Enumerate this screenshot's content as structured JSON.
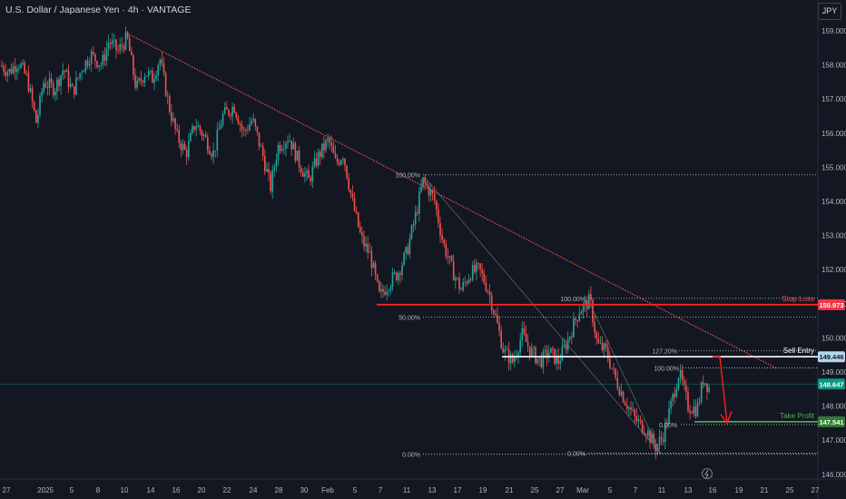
{
  "header": {
    "title": "U.S. Dollar / Japanese Yen · 4h · VANTAGE",
    "currency": "JPY"
  },
  "colors": {
    "background": "#131722",
    "up": "#26a69a",
    "down": "#ef5350",
    "trendline": "#ef5350",
    "stop": "#ff1f1f",
    "entry": "#ffffff",
    "take": "#4caf50",
    "last": "#089981"
  },
  "chart_data": {
    "type": "candlestick",
    "title": "U.S. Dollar / Japanese Yen · 4h · VANTAGE",
    "ylim": [
      145.9,
      159.45
    ],
    "y_ticks": [
      "146.000",
      "147.000",
      "148.000",
      "149.000",
      "150.000",
      "151.000",
      "152.000",
      "153.000",
      "154.000",
      "155.000",
      "156.000",
      "157.000",
      "158.000",
      "159.000"
    ],
    "x_ticks": [
      "27",
      "2025",
      "5",
      "8",
      "10",
      "14",
      "16",
      "20",
      "22",
      "24",
      "28",
      "30",
      "Feb",
      "5",
      "7",
      "11",
      "13",
      "17",
      "19",
      "21",
      "25",
      "27",
      "Mar",
      "5",
      "7",
      "11",
      "13",
      "16",
      "19",
      "21",
      "25",
      "27"
    ],
    "grid": false,
    "price_path": [
      [
        0,
        158.0
      ],
      [
        10,
        157.8
      ],
      [
        20,
        158.1
      ],
      [
        30,
        157.6
      ],
      [
        40,
        156.3
      ],
      [
        48,
        157.5
      ],
      [
        60,
        157.3
      ],
      [
        70,
        157.9
      ],
      [
        80,
        157.2
      ],
      [
        90,
        157.9
      ],
      [
        100,
        158.3
      ],
      [
        112,
        158.0
      ],
      [
        120,
        158.7
      ],
      [
        130,
        158.4
      ],
      [
        140,
        158.8
      ],
      [
        150,
        157.3
      ],
      [
        160,
        157.8
      ],
      [
        168,
        157.6
      ],
      [
        176,
        158.2
      ],
      [
        186,
        156.8
      ],
      [
        195,
        155.9
      ],
      [
        205,
        155.4
      ],
      [
        215,
        156.3
      ],
      [
        225,
        155.9
      ],
      [
        235,
        155.4
      ],
      [
        245,
        156.5
      ],
      [
        258,
        156.8
      ],
      [
        268,
        156.0
      ],
      [
        278,
        156.4
      ],
      [
        290,
        155.3
      ],
      [
        298,
        154.4
      ],
      [
        306,
        155.6
      ],
      [
        318,
        155.9
      ],
      [
        330,
        155.1
      ],
      [
        340,
        154.6
      ],
      [
        350,
        155.3
      ],
      [
        362,
        155.8
      ],
      [
        370,
        155.1
      ],
      [
        378,
        155.4
      ],
      [
        388,
        154.0
      ],
      [
        398,
        152.9
      ],
      [
        408,
        152.4
      ],
      [
        418,
        151.2
      ],
      [
        428,
        151.6
      ],
      [
        438,
        151.9
      ],
      [
        448,
        152.5
      ],
      [
        458,
        153.6
      ],
      [
        466,
        154.6
      ],
      [
        478,
        154.1
      ],
      [
        488,
        152.8
      ],
      [
        498,
        152.0
      ],
      [
        508,
        151.4
      ],
      [
        518,
        151.9
      ],
      [
        528,
        152.0
      ],
      [
        538,
        151.4
      ],
      [
        545,
        150.7
      ],
      [
        555,
        149.6
      ],
      [
        565,
        149.3
      ],
      [
        575,
        150.1
      ],
      [
        585,
        149.6
      ],
      [
        595,
        149.3
      ],
      [
        605,
        149.6
      ],
      [
        615,
        149.3
      ],
      [
        625,
        149.9
      ],
      [
        638,
        150.8
      ],
      [
        650,
        151.1
      ],
      [
        658,
        149.8
      ],
      [
        668,
        149.6
      ],
      [
        678,
        148.8
      ],
      [
        688,
        148.2
      ],
      [
        700,
        147.6
      ],
      [
        712,
        147.3
      ],
      [
        722,
        146.8
      ],
      [
        730,
        147.1
      ],
      [
        738,
        147.9
      ],
      [
        748,
        149.0
      ],
      [
        758,
        148.0
      ],
      [
        768,
        147.9
      ],
      [
        775,
        148.8
      ],
      [
        782,
        148.5
      ]
    ],
    "last_price": "148.647",
    "levels": [
      {
        "name": "Stop Loss",
        "price": 150.973,
        "label": "150.973"
      },
      {
        "name": "Sell Entry",
        "price": 149.446,
        "label": "149.446"
      },
      {
        "name": "Take Profit",
        "price": 147.541,
        "label": "147.541"
      }
    ],
    "fib_labels": {
      "a": [
        "100.00%",
        "50.00%",
        "0.00%"
      ],
      "b": [
        "100.00%",
        "127.20%",
        "0.00%"
      ],
      "c": [
        "100.00%",
        "0.00%"
      ]
    },
    "annotations": [
      "Stop Loss",
      "Sell Entry",
      "Take Profit"
    ]
  }
}
